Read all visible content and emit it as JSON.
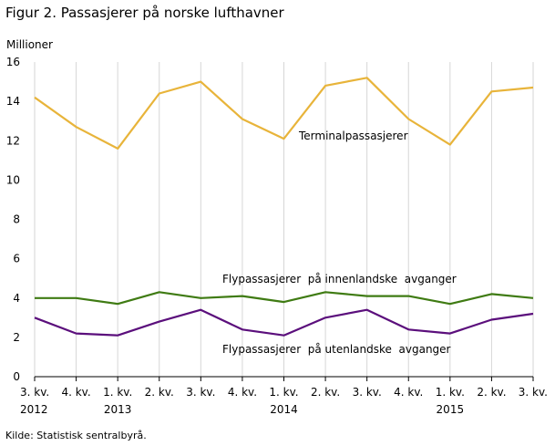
{
  "title": "Figur 2. Passasjerer på norske lufthavner",
  "source": "Kilde: Statistisk sentralbyrå.",
  "chart_data": {
    "type": "line",
    "ylabel": "Millioner",
    "ylim": [
      0,
      16
    ],
    "yticks": [
      0,
      2,
      4,
      6,
      8,
      10,
      12,
      14,
      16
    ],
    "grid": "vertical",
    "categories": [
      {
        "line1": "3. kv.",
        "line2": "2012"
      },
      {
        "line1": "4. kv.",
        "line2": ""
      },
      {
        "line1": "1. kv.",
        "line2": "2013"
      },
      {
        "line1": "2. kv.",
        "line2": ""
      },
      {
        "line1": "3. kv.",
        "line2": ""
      },
      {
        "line1": "4. kv.",
        "line2": ""
      },
      {
        "line1": "1. kv.",
        "line2": "2014"
      },
      {
        "line1": "2. kv.",
        "line2": ""
      },
      {
        "line1": "3. kv.",
        "line2": ""
      },
      {
        "line1": "4. kv.",
        "line2": ""
      },
      {
        "line1": "1. kv.",
        "line2": "2015"
      },
      {
        "line1": "2. kv.",
        "line2": ""
      },
      {
        "line1": "3. kv.",
        "line2": ""
      }
    ],
    "series": [
      {
        "name": "Terminalpassasjerer",
        "color": "#e8b43a",
        "values": [
          14.2,
          12.7,
          11.6,
          14.4,
          15.0,
          13.1,
          12.1,
          14.8,
          15.2,
          13.1,
          11.8,
          14.5,
          14.7
        ]
      },
      {
        "name": "Flypassasjerer  på innenlandske  avganger",
        "color": "#3f7b13",
        "values": [
          4.0,
          4.0,
          3.7,
          4.3,
          4.0,
          4.1,
          3.8,
          4.3,
          4.1,
          4.1,
          3.7,
          4.2,
          4.0
        ]
      },
      {
        "name": "Flypassasjerer  på utenlandske  avganger",
        "color": "#5b0f7c",
        "values": [
          3.0,
          2.2,
          2.1,
          2.8,
          3.4,
          2.4,
          2.1,
          3.0,
          3.4,
          2.4,
          2.2,
          2.9,
          3.2
        ]
      }
    ]
  }
}
